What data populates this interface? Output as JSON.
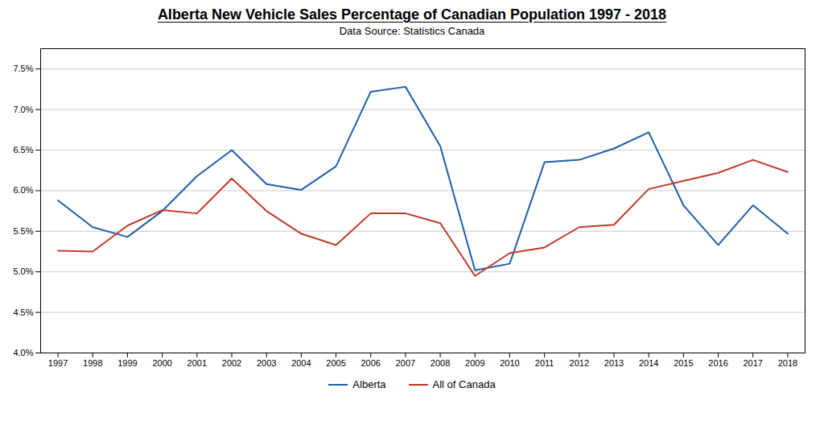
{
  "chart_data": {
    "type": "line",
    "title": "Alberta New Vehicle Sales Percentage of Canadian Population 1997 - 2018",
    "subtitle": "Data Source: Statistics Canada",
    "x": [
      1997,
      1998,
      1999,
      2000,
      2001,
      2002,
      2003,
      2004,
      2005,
      2006,
      2007,
      2008,
      2009,
      2010,
      2011,
      2012,
      2013,
      2014,
      2015,
      2016,
      2017,
      2018
    ],
    "series": [
      {
        "name": "Alberta",
        "color": "#1f5fa6",
        "values": [
          5.88,
          5.55,
          5.43,
          5.75,
          6.18,
          6.5,
          6.08,
          6.01,
          6.3,
          7.22,
          7.28,
          6.55,
          5.02,
          5.1,
          6.35,
          6.38,
          6.52,
          6.72,
          5.82,
          5.33,
          5.82,
          5.47
        ]
      },
      {
        "name": "All of Canada",
        "color": "#c0392b",
        "values": [
          5.26,
          5.25,
          5.57,
          5.76,
          5.72,
          6.15,
          5.75,
          5.47,
          5.33,
          5.72,
          5.72,
          5.6,
          4.95,
          5.23,
          5.3,
          5.55,
          5.58,
          6.02,
          6.12,
          6.22,
          6.38,
          6.23
        ]
      }
    ],
    "xlim": [
      1996.5,
      2018.5
    ],
    "xticks": [
      1997,
      1998,
      1999,
      2000,
      2001,
      2002,
      2003,
      2004,
      2005,
      2006,
      2007,
      2008,
      2009,
      2010,
      2011,
      2012,
      2013,
      2014,
      2015,
      2016,
      2017,
      2018
    ],
    "ylim": [
      4.0,
      7.75
    ],
    "yticks": [
      {
        "value": 4.0,
        "label": "4.0%"
      },
      {
        "value": 4.5,
        "label": "4.5%"
      },
      {
        "value": 5.0,
        "label": "5.0%"
      },
      {
        "value": 5.5,
        "label": "5.5%"
      },
      {
        "value": 6.0,
        "label": "6.0%"
      },
      {
        "value": 6.5,
        "label": "6.5%"
      },
      {
        "value": 7.0,
        "label": "7.0%"
      },
      {
        "value": 7.5,
        "label": "7.5%"
      }
    ],
    "grid": true,
    "legend": "bottom"
  }
}
